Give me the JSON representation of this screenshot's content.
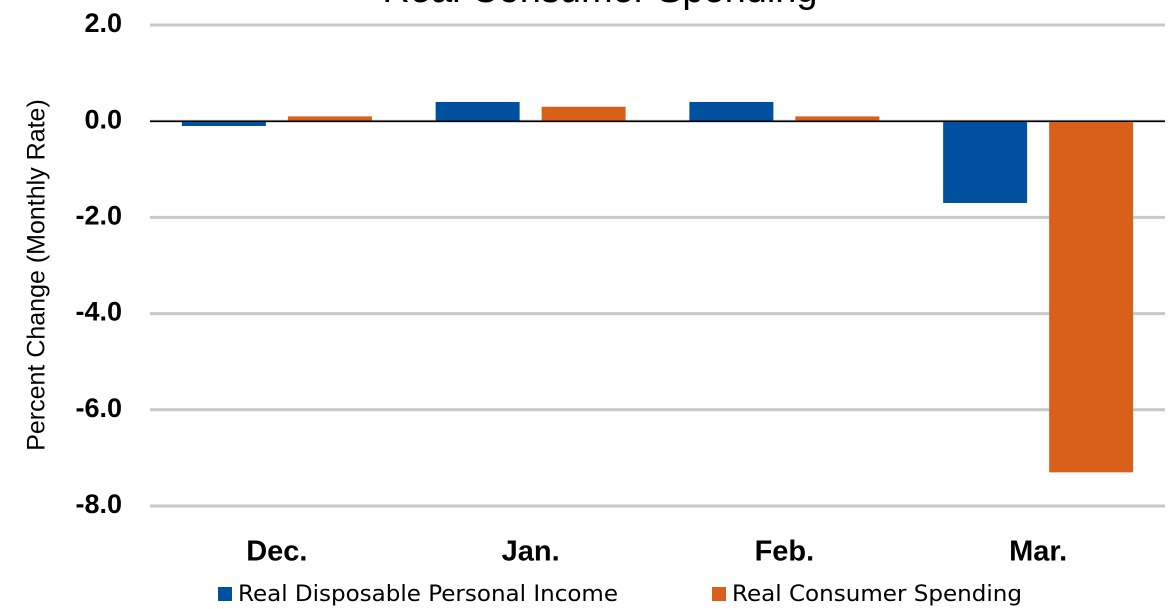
{
  "chart_data": {
    "type": "bar",
    "title": "Real Consumer Spending",
    "y_label": "Percent Change (Monthly Rate)",
    "categories": [
      "Dec.",
      "Jan.",
      "Feb.",
      "Mar."
    ],
    "series": [
      {
        "name": "Real Disposable Personal Income",
        "color": "#0050a0",
        "values": [
          -0.1,
          0.4,
          0.4,
          -1.7
        ]
      },
      {
        "name": "Real Consumer Spending",
        "color": "#d9601a",
        "values": [
          0.1,
          0.3,
          0.1,
          -7.3
        ]
      }
    ],
    "ylim": [
      -8,
      2
    ],
    "yticks": [
      {
        "value": 2,
        "label": "2.0"
      },
      {
        "value": 0,
        "label": "0.0"
      },
      {
        "value": -2,
        "label": "-2.0"
      },
      {
        "value": -4,
        "label": "-4.0"
      },
      {
        "value": -6,
        "label": "-6.0"
      },
      {
        "value": -8,
        "label": "-8.0"
      }
    ],
    "grid": true,
    "legend": "bottom"
  }
}
